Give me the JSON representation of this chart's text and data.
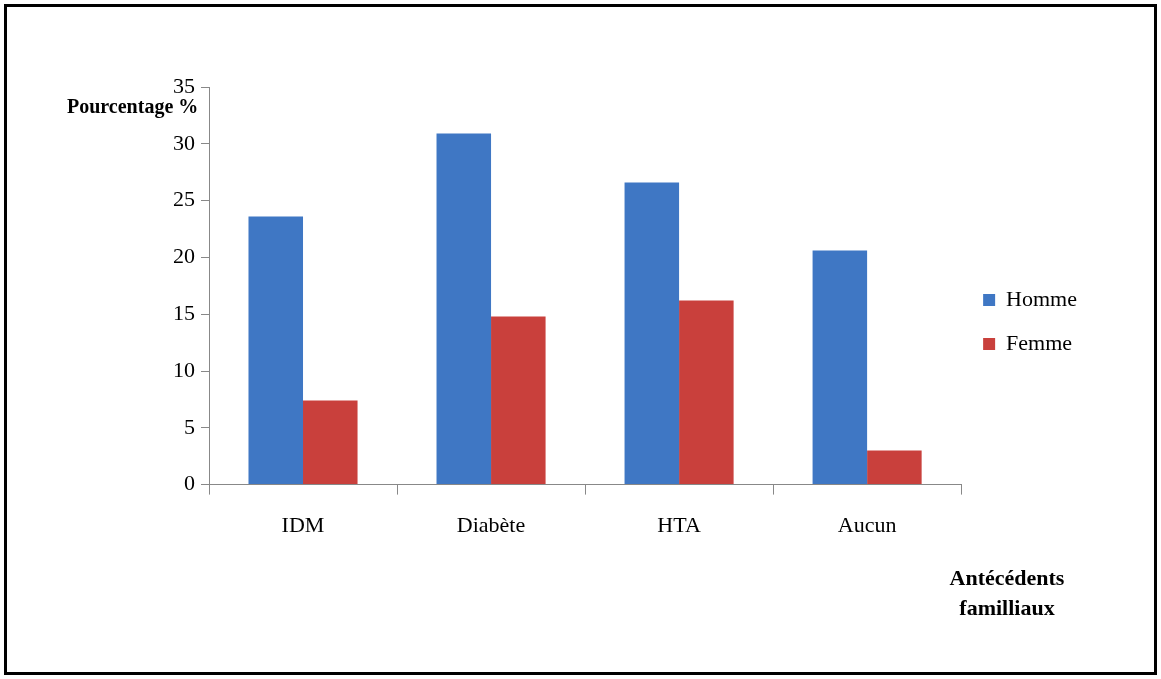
{
  "chart_data": {
    "type": "bar",
    "xlabel": "Antécédents familliaux",
    "ylabel": "Pourcentage %",
    "categories": [
      "IDM",
      "Diabète",
      "HTA",
      "Aucun"
    ],
    "series": [
      {
        "name": "Homme",
        "color": "#3f77c4",
        "values": [
          23.6,
          30.9,
          26.6,
          20.6
        ]
      },
      {
        "name": "Femme",
        "color": "#c9403c",
        "values": [
          7.4,
          14.8,
          16.2,
          3.0
        ]
      }
    ],
    "ylim": [
      0,
      35
    ],
    "yticks": [
      0,
      5,
      10,
      15,
      20,
      25,
      30,
      35
    ],
    "grid": false,
    "legend": "right"
  }
}
